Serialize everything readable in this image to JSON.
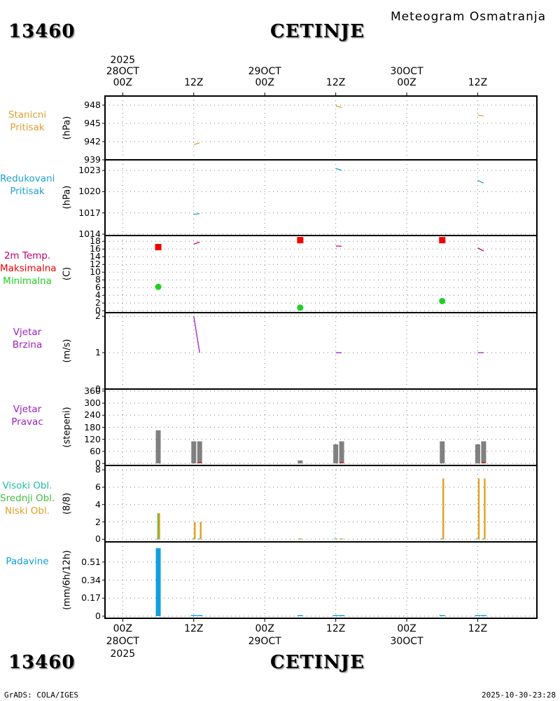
{
  "header": {
    "station_id": "13460",
    "station_name": "CETINJE",
    "title": "Meteogram Osmatranja"
  },
  "footer": {
    "station_id": "13460",
    "station_name": "CETINJE",
    "credit": "GrADS: COLA/IGES",
    "timestamp": "2025-10-30-23:28"
  },
  "time_axis": {
    "year": "2025",
    "top_ticks": [
      {
        "hour": 0,
        "lines": [
          "2025",
          "28OCT",
          "00Z"
        ]
      },
      {
        "hour": 12,
        "lines": [
          "12Z"
        ]
      },
      {
        "hour": 24,
        "lines": [
          "29OCT",
          "00Z"
        ]
      },
      {
        "hour": 36,
        "lines": [
          "12Z"
        ]
      },
      {
        "hour": 48,
        "lines": [
          "30OCT",
          "00Z"
        ]
      },
      {
        "hour": 60,
        "lines": [
          "12Z"
        ]
      }
    ],
    "bottom_ticks": [
      {
        "hour": 0,
        "lines": [
          "00Z",
          "28OCT",
          "2025"
        ]
      },
      {
        "hour": 12,
        "lines": [
          "12Z"
        ]
      },
      {
        "hour": 24,
        "lines": [
          "00Z",
          "29OCT"
        ]
      },
      {
        "hour": 36,
        "lines": [
          "12Z"
        ]
      },
      {
        "hour": 48,
        "lines": [
          "00Z",
          "30OCT"
        ]
      },
      {
        "hour": 60,
        "lines": [
          "12Z"
        ]
      }
    ],
    "range_hours": [
      -3,
      70
    ]
  },
  "colors": {
    "station_pressure": "#e0a030",
    "reduced_pressure": "#20a0d0",
    "temperature": "#c00070",
    "tmax": "#f00000",
    "tmin": "#20d020",
    "wind": "#a020c0",
    "direction_bar": "#808080",
    "cloud_high": "#20c0a0",
    "cloud_mid": "#40c040",
    "cloud_low": "#e0a020",
    "precip": "#10a0e0",
    "grid": "#808080"
  },
  "chart_data": [
    {
      "id": "station_pressure",
      "type": "line",
      "labels": [
        "Stanicni",
        "Pritisak"
      ],
      "unit": "(hPa)",
      "ylim": [
        939,
        949.5
      ],
      "yticks": [
        939,
        942,
        945,
        948
      ],
      "series": [
        {
          "name": "Stanicni Pritisak",
          "segments": [
            [
              [
                12,
                941.5
              ],
              [
                13,
                941.8
              ]
            ],
            [
              [
                36,
                947.9
              ],
              [
                37,
                947.6
              ]
            ],
            [
              [
                60,
                946.4
              ],
              [
                61,
                946.2
              ]
            ]
          ]
        }
      ]
    },
    {
      "id": "reduced_pressure",
      "type": "line",
      "labels": [
        "Redukovani",
        "Pritisak"
      ],
      "unit": "(hPa)",
      "ylim": [
        1013.8,
        1024.5
      ],
      "yticks": [
        1014,
        1017,
        1020,
        1023
      ],
      "series": [
        {
          "name": "Redukovani Pritisak",
          "segments": [
            [
              [
                12,
                1016.8
              ],
              [
                13,
                1016.9
              ]
            ],
            [
              [
                36,
                1023.3
              ],
              [
                37,
                1023.0
              ]
            ],
            [
              [
                60,
                1021.6
              ],
              [
                61,
                1021.2
              ]
            ]
          ]
        }
      ]
    },
    {
      "id": "temperature",
      "type": "line",
      "labels": [
        "2m Temp.",
        "Maksimalna",
        "Minimalna"
      ],
      "unit": "(C)",
      "ylim": [
        -0.5,
        19.5
      ],
      "yticks": [
        0,
        2,
        4,
        6,
        8,
        10,
        12,
        14,
        16,
        18
      ],
      "series": [
        {
          "name": "2m Temp.",
          "segments": [
            [
              [
                12,
                17.3
              ],
              [
                13,
                17.8
              ]
            ],
            [
              [
                36,
                16.8
              ],
              [
                37,
                16.7
              ]
            ],
            [
              [
                60,
                16.3
              ],
              [
                61,
                15.5
              ]
            ]
          ]
        }
      ],
      "tmax": [
        [
          6,
          16.5
        ],
        [
          30,
          18.3
        ],
        [
          54,
          18.3
        ]
      ],
      "tmin": [
        [
          6,
          6.2
        ],
        [
          30,
          0.8
        ],
        [
          54,
          2.5
        ]
      ]
    },
    {
      "id": "wind_speed",
      "type": "line",
      "labels": [
        "Vjetar",
        "Brzina"
      ],
      "unit": "(m/s)",
      "ylim": [
        0,
        2.1
      ],
      "yticks": [
        0,
        1,
        2
      ],
      "series": [
        {
          "name": "Vjetar Brzina",
          "segments": [
            [
              [
                12,
                2.0
              ],
              [
                13,
                1.0
              ]
            ],
            [
              [
                36,
                1.0
              ],
              [
                37,
                1.0
              ]
            ],
            [
              [
                60,
                1.0
              ],
              [
                61,
                1.0
              ]
            ]
          ]
        }
      ]
    },
    {
      "id": "wind_direction",
      "type": "bar",
      "labels": [
        "Vjetar",
        "Pravac"
      ],
      "unit": "(stepeni)",
      "ylim": [
        -10,
        370
      ],
      "yticks": [
        0,
        60,
        120,
        180,
        240,
        300,
        360
      ],
      "bars": [
        {
          "hour": 6,
          "value": 165
        },
        {
          "hour": 12,
          "value": 110
        },
        {
          "hour": 13,
          "value": 110
        },
        {
          "hour": 30,
          "value": 15
        },
        {
          "hour": 36,
          "value": 95
        },
        {
          "hour": 37,
          "value": 110
        },
        {
          "hour": 54,
          "value": 110
        },
        {
          "hour": 60,
          "value": 95
        },
        {
          "hour": 61,
          "value": 110
        }
      ],
      "markers": [
        {
          "hour": 13,
          "value": 5
        },
        {
          "hour": 37,
          "value": 5
        },
        {
          "hour": 61,
          "value": 5
        }
      ]
    },
    {
      "id": "clouds",
      "type": "bar",
      "labels": [
        "Visoki Obl.",
        "Srednji Obl.",
        "Niski Obl."
      ],
      "unit": "(8/8)",
      "ylim": [
        -0.3,
        8.5
      ],
      "yticks": [
        0,
        2,
        4,
        6,
        8
      ],
      "series": [
        {
          "name": "Visoki Obl.",
          "values": [
            [
              6,
              0
            ],
            [
              12,
              0
            ],
            [
              13,
              0
            ],
            [
              30,
              0
            ],
            [
              36,
              0
            ],
            [
              37,
              0
            ],
            [
              54,
              0
            ],
            [
              60,
              0
            ],
            [
              61,
              0
            ]
          ]
        },
        {
          "name": "Srednji Obl.",
          "values": [
            [
              6,
              3
            ],
            [
              12,
              0
            ],
            [
              13,
              0
            ],
            [
              30,
              0
            ],
            [
              36,
              0
            ],
            [
              37,
              0
            ],
            [
              54,
              0
            ],
            [
              60,
              0
            ],
            [
              61,
              0
            ]
          ]
        },
        {
          "name": "Niski Obl.",
          "values": [
            [
              6,
              3
            ],
            [
              12,
              2
            ],
            [
              13,
              2
            ],
            [
              30,
              0
            ],
            [
              36,
              0
            ],
            [
              37,
              0
            ],
            [
              54,
              7
            ],
            [
              60,
              7
            ],
            [
              61,
              7
            ]
          ]
        }
      ]
    },
    {
      "id": "precipitation",
      "type": "bar",
      "labels": [
        "Padavine"
      ],
      "unit": "(mm/6h/12h)",
      "ylim": [
        -0.02,
        0.7
      ],
      "yticks": [
        0,
        0.17,
        0.34,
        0.51
      ],
      "ytick_labels": [
        "0",
        "0.17",
        "0.34",
        "0.51"
      ],
      "bars": [
        {
          "hour": 6,
          "value": 0.64
        },
        {
          "hour": 12,
          "value": 0.005
        },
        {
          "hour": 13,
          "value": 0.005
        },
        {
          "hour": 30,
          "value": 0.005
        },
        {
          "hour": 36,
          "value": 0.005
        },
        {
          "hour": 37,
          "value": 0.005
        },
        {
          "hour": 54,
          "value": 0.005
        },
        {
          "hour": 60,
          "value": 0.005
        },
        {
          "hour": 61,
          "value": 0.005
        }
      ]
    }
  ]
}
